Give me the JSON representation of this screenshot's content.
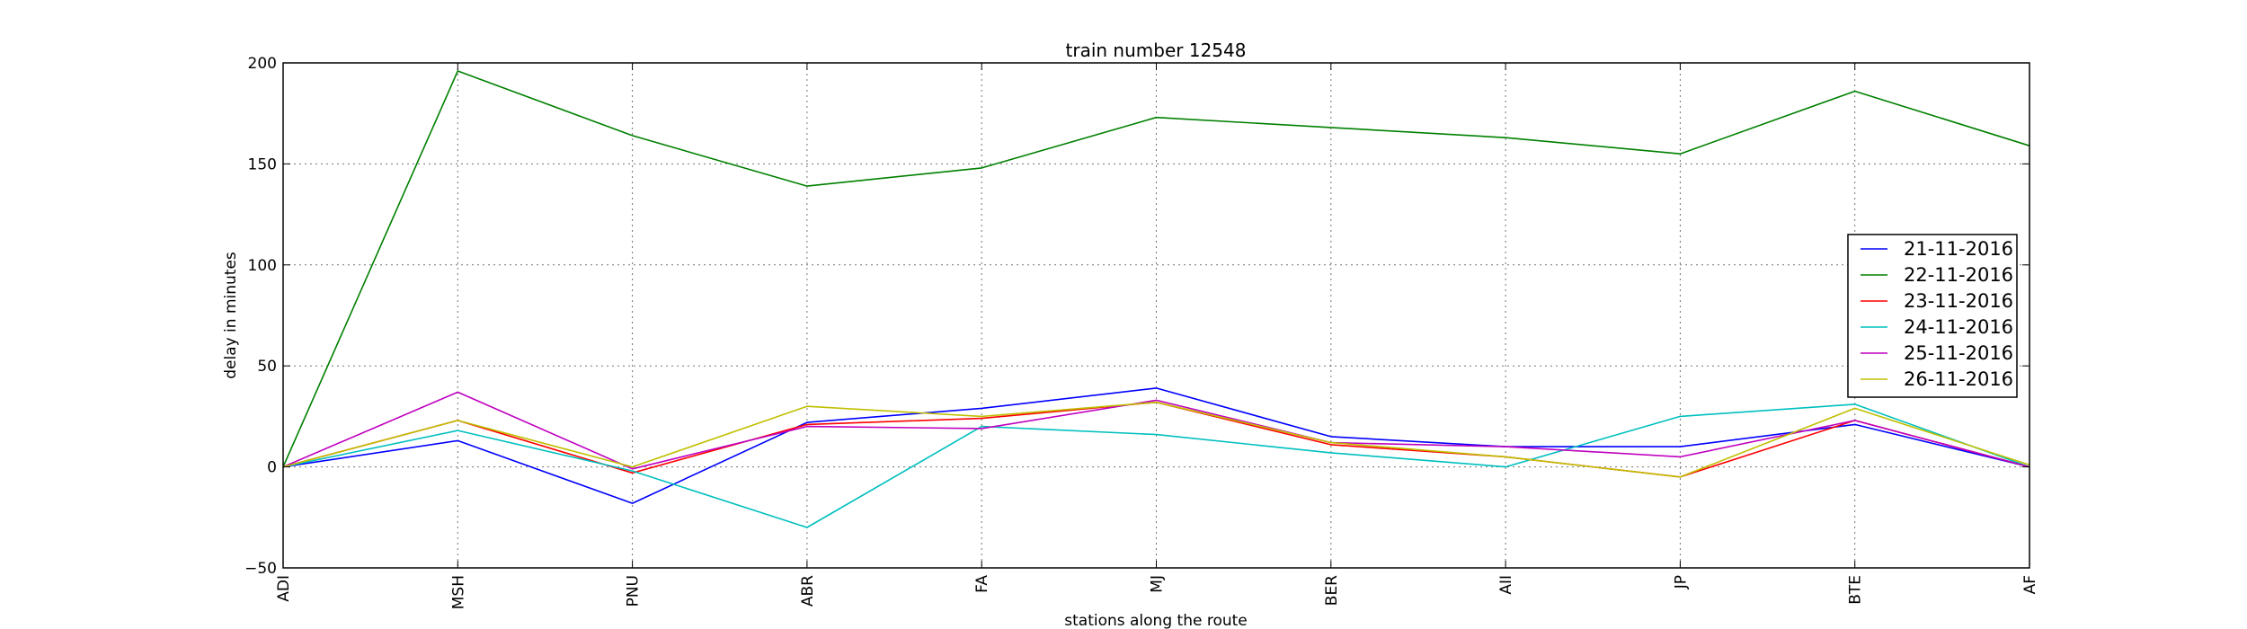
{
  "chart_data": {
    "type": "line",
    "title": "train number 12548",
    "xlabel": "stations along the route",
    "ylabel": "delay in minutes",
    "categories": [
      "ADI",
      "MSH",
      "PNU",
      "ABR",
      "FA",
      "MJ",
      "BER",
      "AII",
      "JP",
      "BTE",
      "AF"
    ],
    "ylim": [
      -50,
      200
    ],
    "yticks": [
      -50,
      0,
      50,
      100,
      150,
      200
    ],
    "grid": true,
    "legend_position": "right",
    "series": [
      {
        "name": "21-11-2016",
        "color": "#0000ff",
        "values": [
          0,
          13,
          -18,
          22,
          29,
          39,
          15,
          10,
          10,
          21,
          0
        ]
      },
      {
        "name": "22-11-2016",
        "color": "#008000",
        "values": [
          0,
          196,
          164,
          139,
          148,
          173,
          168,
          163,
          155,
          186,
          159
        ]
      },
      {
        "name": "23-11-2016",
        "color": "#ff0000",
        "values": [
          0,
          23,
          -3,
          21,
          24,
          32,
          11,
          5,
          -5,
          23,
          0
        ]
      },
      {
        "name": "24-11-2016",
        "color": "#00bfbf",
        "values": [
          0,
          18,
          -2,
          -30,
          20,
          16,
          7,
          0,
          25,
          31,
          0
        ]
      },
      {
        "name": "25-11-2016",
        "color": "#bf00bf",
        "values": [
          0,
          37,
          -1,
          20,
          19,
          33,
          12,
          10,
          5,
          23,
          0
        ]
      },
      {
        "name": "26-11-2016",
        "color": "#bfbf00",
        "values": [
          0,
          23,
          0,
          30,
          25,
          32,
          12,
          5,
          -5,
          29,
          1
        ]
      }
    ]
  }
}
